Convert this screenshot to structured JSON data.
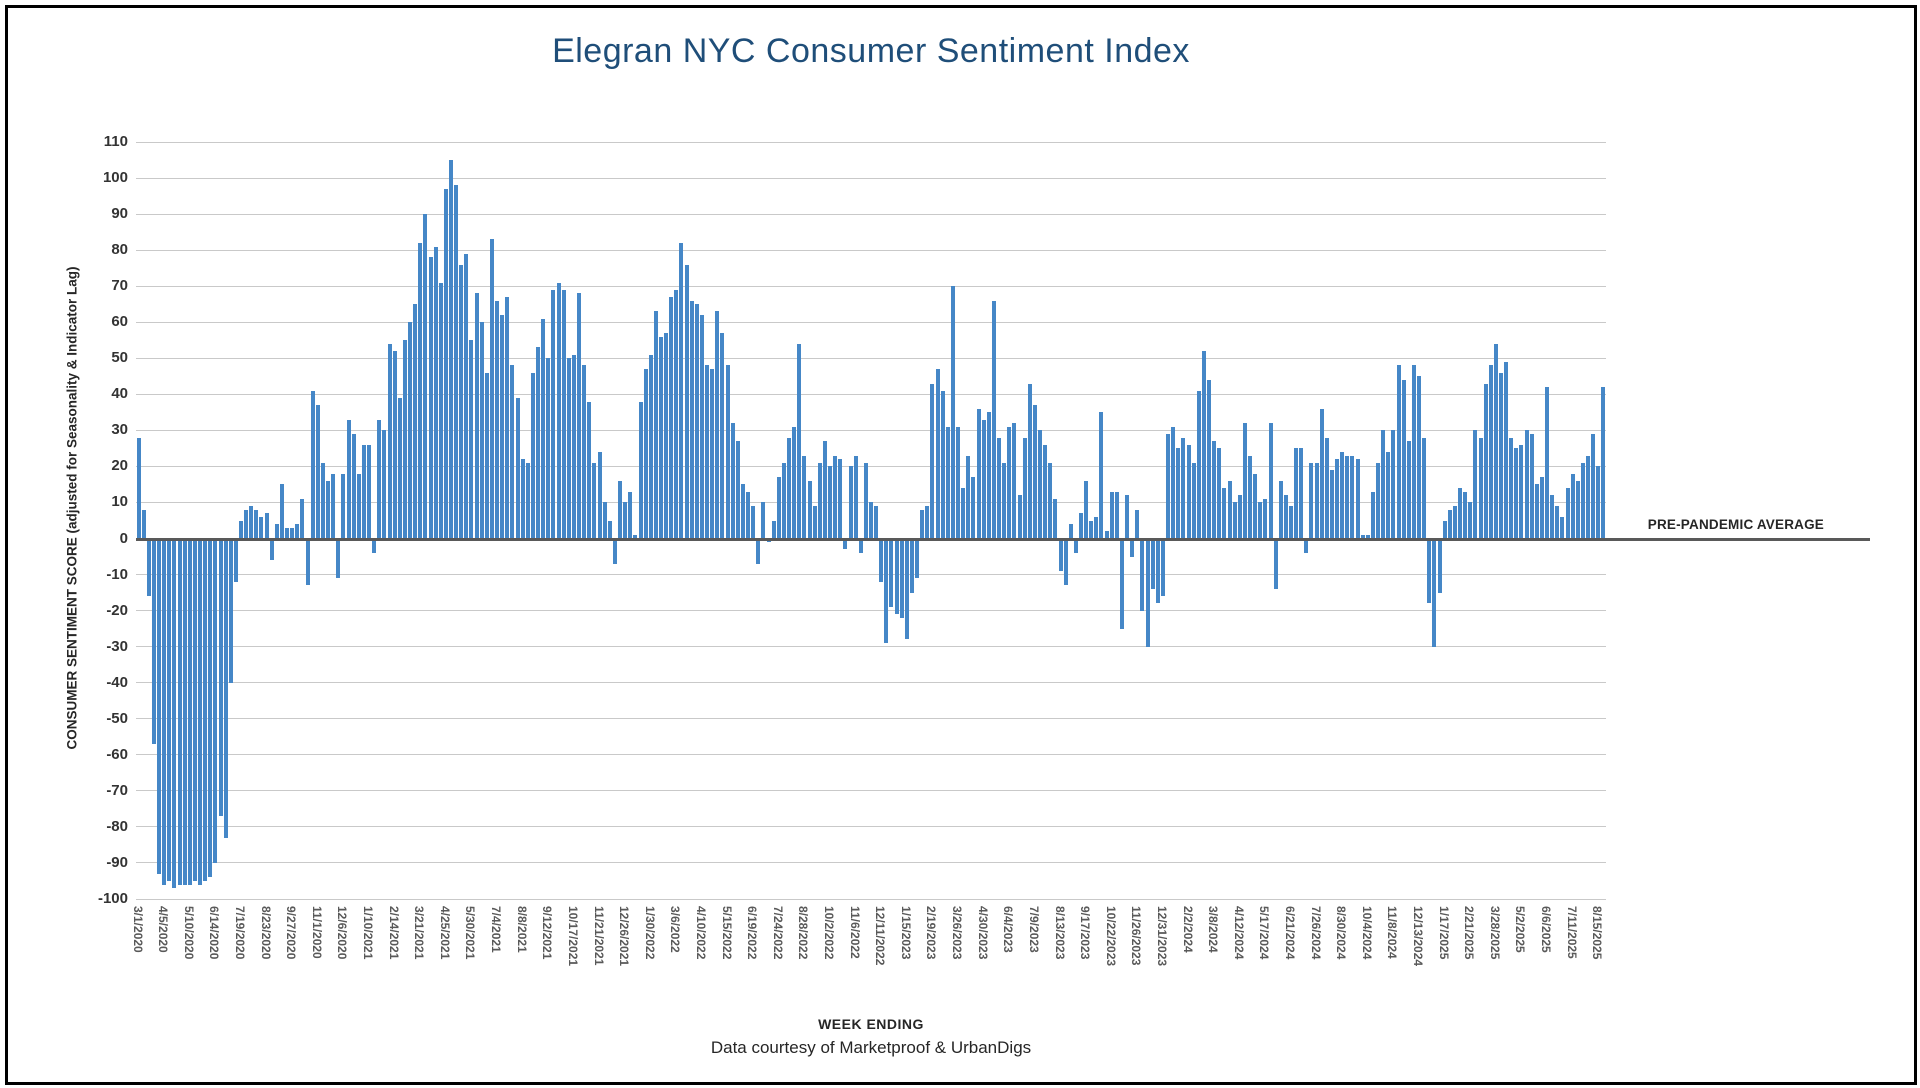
{
  "title": "Elegran NYC Consumer Sentiment Index",
  "annotation": "PRE-PANDEMIC AVERAGE",
  "colors": {
    "bar": "#4587c7",
    "title": "#1f4e79",
    "gridline": "#c9c9c9",
    "zero_line": "#595959"
  },
  "chart_data": {
    "type": "bar",
    "title": "Elegran NYC Consumer Sentiment Index",
    "xlabel": "WEEK ENDING",
    "ylabel": "CONSUMER SENTIMENT SCORE (adjusted for Seasonality & Indicator Lag)",
    "caption": "Data courtesy of Marketproof & UrbanDigs",
    "annotation": "PRE-PANDEMIC AVERAGE",
    "baseline": 0,
    "ylim": [
      -100,
      110
    ],
    "grid": true,
    "y_ticks": [
      110,
      100,
      90,
      80,
      70,
      60,
      50,
      40,
      30,
      20,
      10,
      0,
      -10,
      -20,
      -30,
      -40,
      -50,
      -60,
      -70,
      -80,
      -90,
      -100
    ],
    "tick_every": 5,
    "x_tick_labels": [
      "3/1/2020",
      "4/5/2020",
      "5/10/2020",
      "6/14/2020",
      "7/19/2020",
      "8/23/2020",
      "9/27/2020",
      "11/1/2020",
      "12/6/2020",
      "1/10/2021",
      "2/14/2021",
      "3/21/2021",
      "4/25/2021",
      "5/30/2021",
      "7/4/2021",
      "8/8/2021",
      "9/12/2021",
      "10/17/2021",
      "11/21/2021",
      "12/26/2021",
      "1/30/2022",
      "3/6/2022",
      "4/10/2022",
      "5/15/2022",
      "6/19/2022",
      "7/24/2022",
      "8/28/2022",
      "10/2/2022",
      "11/6/2022",
      "12/11/2022",
      "1/15/2023",
      "2/19/2023",
      "3/26/2023",
      "4/30/2023",
      "6/4/2023",
      "7/9/2023",
      "8/13/2023",
      "9/17/2023",
      "10/22/2023",
      "11/26/2023",
      "12/31/2023",
      "2/2/2024",
      "3/8/2024",
      "4/12/2024",
      "5/17/2024",
      "6/21/2024",
      "7/26/2024",
      "8/30/2024",
      "10/4/2024",
      "11/8/2024",
      "12/13/2024",
      "1/17/2025",
      "2/21/2025",
      "3/28/2025",
      "5/2/2025",
      "6/6/2025",
      "7/11/2025",
      "8/15/2025"
    ],
    "values": [
      28,
      8,
      -16,
      -57,
      -93,
      -96,
      -95,
      -97,
      -96,
      -96,
      -96,
      -95,
      -96,
      -95,
      -94,
      -90,
      -77,
      -83,
      -40,
      -12,
      5,
      8,
      9,
      8,
      6,
      7,
      -6,
      4,
      15,
      3,
      3,
      4,
      11,
      -13,
      41,
      37,
      21,
      16,
      18,
      -11,
      18,
      33,
      29,
      18,
      26,
      26,
      -4,
      33,
      30,
      54,
      52,
      39,
      55,
      60,
      65,
      82,
      90,
      78,
      81,
      71,
      97,
      105,
      98,
      76,
      79,
      55,
      68,
      60,
      46,
      83,
      66,
      62,
      67,
      48,
      39,
      22,
      21,
      46,
      53,
      61,
      50,
      69,
      71,
      69,
      50,
      51,
      68,
      48,
      38,
      21,
      24,
      10,
      5,
      -7,
      16,
      10,
      13,
      1,
      38,
      47,
      51,
      63,
      56,
      57,
      67,
      69,
      82,
      76,
      66,
      65,
      62,
      48,
      47,
      63,
      57,
      48,
      32,
      27,
      15,
      13,
      9,
      -7,
      10,
      -1,
      5,
      17,
      21,
      28,
      31,
      54,
      23,
      16,
      9,
      21,
      27,
      20,
      23,
      22,
      -3,
      20,
      23,
      -4,
      21,
      10,
      9,
      -12,
      -29,
      -19,
      -21,
      -22,
      -28,
      -15,
      -11,
      8,
      9,
      43,
      47,
      41,
      31,
      70,
      31,
      14,
      23,
      17,
      36,
      33,
      35,
      66,
      28,
      21,
      31,
      32,
      12,
      28,
      43,
      37,
      30,
      26,
      21,
      11,
      -9,
      -13,
      4,
      -4,
      7,
      16,
      5,
      6,
      35,
      2,
      13,
      13,
      -25,
      12,
      -5,
      8,
      -20,
      -30,
      -14,
      -18,
      -16,
      29,
      31,
      25,
      28,
      26,
      21,
      41,
      52,
      44,
      27,
      25,
      14,
      16,
      10,
      12,
      32,
      23,
      18,
      10,
      11,
      32,
      -14,
      16,
      12,
      9,
      25,
      25,
      -4,
      21,
      21,
      36,
      28,
      19,
      22,
      24,
      23,
      23,
      22,
      1,
      1,
      13,
      21,
      30,
      24,
      30,
      48,
      44,
      27,
      48,
      45,
      28,
      -18,
      -30,
      -15,
      5,
      8,
      9,
      14,
      13,
      10,
      30,
      28,
      43,
      48,
      54,
      46,
      49,
      28,
      25,
      26,
      30,
      29,
      15,
      17,
      42,
      12,
      9,
      6,
      14,
      18,
      16,
      21,
      23,
      29,
      20,
      42
    ]
  }
}
